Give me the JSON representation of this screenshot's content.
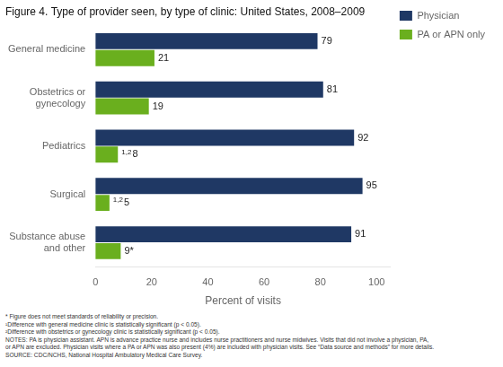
{
  "chart_data": {
    "type": "bar",
    "orientation": "horizontal",
    "title": "Figure 4. Type of provider seen, by type of clinic: United States, 2008–2009",
    "categories": [
      "General medicine",
      "Obstetrics or\ngynecology",
      "Pediatrics",
      "Surgical",
      "Substance abuse\nand other"
    ],
    "series": [
      {
        "name": "Physician",
        "color": "#1F3864",
        "values": [
          79,
          81,
          92,
          95,
          91
        ]
      },
      {
        "name": "PA or APN only",
        "color": "#6AAF1E",
        "values": [
          21,
          19,
          8,
          5,
          9
        ],
        "value_labels": [
          "21",
          "19",
          "8",
          "5",
          "9*"
        ],
        "value_label_notes": [
          null,
          null,
          "1,2",
          "1,2",
          null
        ]
      }
    ],
    "xlabel": "Percent of visits",
    "xlim": [
      0,
      105
    ],
    "xticks": [
      0,
      20,
      40,
      60,
      80,
      100
    ],
    "grid": false,
    "legend": "upper right",
    "data_labels": true,
    "footnotes": [
      "* Figure does not meet standards of reliability or precision.",
      "¹Difference with general medicine clinic is statistically significant (p < 0.05).",
      "²Difference with obstetrics or gynecology clinic is statistically significant (p < 0.05).",
      "NOTES: PA is physician assistant. APN is advance practice nurse and includes nurse practitioners and nurse midwives. Visits that did not involve a physician, PA,",
      "or APN are excluded. Physician visits where a PA or APN was also present (4%) are included with physician visits. See “Data source and methods” for more details.",
      "SOURCE: CDC/NCHS, National Hospital Ambulatory Medical Care Survey."
    ]
  }
}
